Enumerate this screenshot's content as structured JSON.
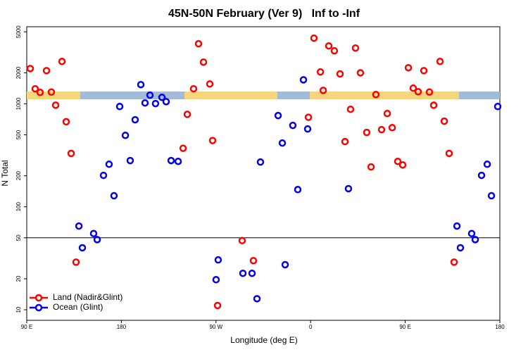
{
  "chart_data": {
    "type": "scatter",
    "title": "45N-50N February (Ver 9)   Inf to -Inf",
    "x_label": "Longitude (deg E)",
    "y_label": "N Total",
    "log_y": true,
    "xlim": [
      90,
      540
    ],
    "ylim": [
      7.9,
      5600
    ],
    "xticks": [
      {
        "value": 90,
        "label": "90 E"
      },
      {
        "value": 180,
        "label": "180"
      },
      {
        "value": 270,
        "label": "90 W"
      },
      {
        "value": 360,
        "label": "0"
      },
      {
        "value": 450,
        "label": "90 E"
      },
      {
        "value": 540,
        "label": "180"
      }
    ],
    "yticks": [
      10,
      20,
      50,
      100,
      200,
      500,
      1000,
      2000,
      5000
    ],
    "hline": 50,
    "legend": "bottom-left",
    "series": [
      {
        "name": "Land (Nadir&Glint)",
        "color": "#ff0000",
        "x": [
          93.3,
          98,
          102.7,
          108.8,
          113.4,
          117.5,
          123.5,
          127.5,
          132.2,
          136.9,
          238.7,
          242.7,
          248.7,
          253.4,
          258.1,
          264.1,
          266.8,
          271.5,
          294.9,
          305.6,
          357.9,
          363.2,
          369.3,
          372,
          377.3,
          382.6,
          388,
          392.7,
          398,
          402.7,
          407.4,
          413.4,
          417.5,
          422.1,
          427.5,
          432.9,
          437.6,
          442.9,
          447.6,
          453,
          457.6,
          462.3,
          467.7,
          473,
          477.1,
          483.1,
          487.1,
          491.8,
          496.5
        ],
        "values": [
          2200,
          1400,
          1290,
          2100,
          1300,
          970,
          2580,
          670,
          330,
          29,
          370,
          790,
          1400,
          3830,
          2540,
          1560,
          440,
          11,
          47,
          30,
          740,
          4340,
          2040,
          1350,
          3650,
          3270,
          1950,
          430,
          885,
          3480,
          2000,
          527,
          244,
          1230,
          561,
          805,
          587,
          276,
          255,
          2240,
          1420,
          1310,
          2100,
          1300,
          970,
          2580,
          678,
          330,
          29
        ]
      },
      {
        "name": "Ocean (Glint)",
        "color": "#0000ee",
        "x": [
          139.6,
          142.9,
          153.6,
          157,
          163,
          168.3,
          173,
          178.4,
          183.8,
          188.4,
          193.1,
          198.5,
          202.5,
          207.2,
          212.5,
          218.6,
          222.6,
          227.3,
          234,
          270.1,
          272.1,
          295.6,
          304.3,
          309,
          312.3,
          329.1,
          333.1,
          335.8,
          343.1,
          347.8,
          353.2,
          357.2,
          396,
          499.2,
          502.5,
          513.2,
          516.6,
          522.6,
          528,
          532,
          538
        ],
        "values": [
          65,
          40,
          55,
          48,
          202,
          259,
          128,
          942,
          494,
          281,
          700,
          1535,
          1020,
          1213,
          1005,
          1155,
          1050,
          281,
          276,
          19.6,
          30.5,
          22.6,
          22.6,
          12.8,
          272,
          769,
          416,
          27.4,
          617,
          147,
          1710,
          570,
          150,
          65,
          40,
          55,
          48,
          202,
          259,
          128,
          942
        ]
      }
    ]
  }
}
